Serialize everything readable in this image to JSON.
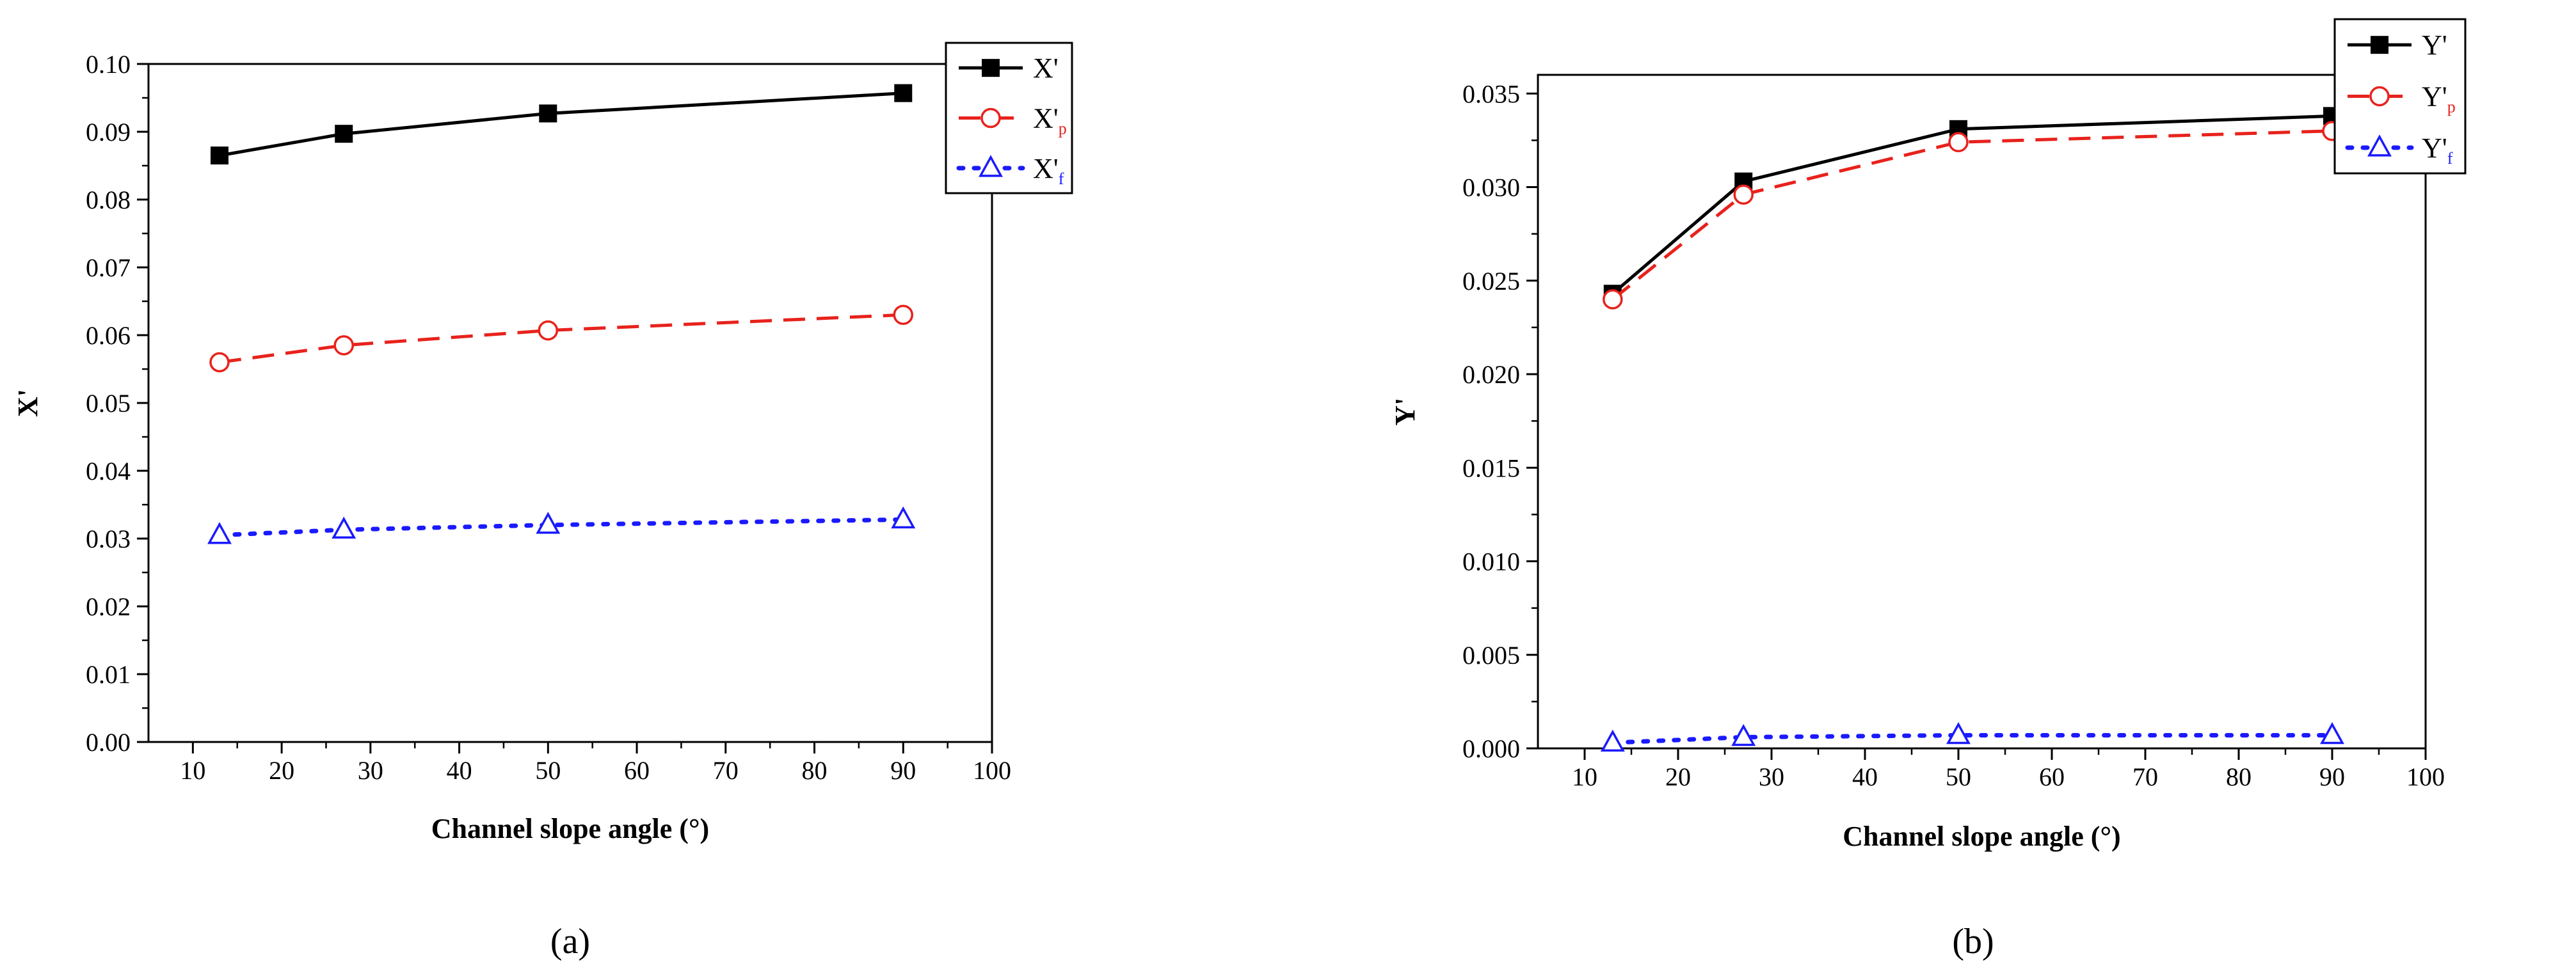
{
  "chart_data": [
    {
      "type": "line",
      "panel_label": "(a)",
      "xlabel": "Channel slope angle (°)",
      "ylabel": "X'",
      "xlim": [
        5,
        100
      ],
      "ylim": [
        0,
        0.1
      ],
      "xticks": [
        10,
        20,
        30,
        40,
        50,
        60,
        70,
        80,
        90,
        100
      ],
      "yticks": [
        "0.00",
        "0.01",
        "0.02",
        "0.03",
        "0.04",
        "0.05",
        "0.06",
        "0.07",
        "0.08",
        "0.09",
        "0.10"
      ],
      "grid": false,
      "legend_position": "top-right",
      "x": [
        13,
        27,
        50,
        90
      ],
      "series": [
        {
          "name": "X'",
          "subscript": "",
          "values": [
            0.0865,
            0.0897,
            0.0927,
            0.0957
          ],
          "color": "#000000",
          "marker": "square",
          "linestyle": "solid"
        },
        {
          "name": "X'",
          "subscript": "p",
          "values": [
            0.056,
            0.0585,
            0.0607,
            0.063
          ],
          "color": "#e8221c",
          "marker": "circle",
          "linestyle": "dashed"
        },
        {
          "name": "X'",
          "subscript": "f",
          "values": [
            0.0305,
            0.0313,
            0.032,
            0.0328
          ],
          "color": "#1a1aff",
          "marker": "triangle",
          "linestyle": "dotted"
        }
      ]
    },
    {
      "type": "line",
      "panel_label": "(b)",
      "xlabel": "Channel slope angle (°)",
      "ylabel": "Y'",
      "xlim": [
        5,
        100
      ],
      "ylim": [
        0,
        0.036
      ],
      "xticks": [
        10,
        20,
        30,
        40,
        50,
        60,
        70,
        80,
        90,
        100
      ],
      "yticks": [
        "0.000",
        "0.005",
        "0.010",
        "0.015",
        "0.020",
        "0.025",
        "0.030",
        "0.035"
      ],
      "grid": false,
      "legend_position": "top-right",
      "x": [
        13,
        27,
        50,
        90
      ],
      "series": [
        {
          "name": "Y'",
          "subscript": "",
          "values": [
            0.0243,
            0.0303,
            0.0331,
            0.0338
          ],
          "color": "#000000",
          "marker": "square",
          "linestyle": "solid"
        },
        {
          "name": "Y'",
          "subscript": "p",
          "values": [
            0.024,
            0.0296,
            0.0324,
            0.033
          ],
          "color": "#e8221c",
          "marker": "circle",
          "linestyle": "dashed"
        },
        {
          "name": "Y'",
          "subscript": "f",
          "values": [
            0.0003,
            0.0006,
            0.0007,
            0.0007
          ],
          "color": "#1a1aff",
          "marker": "triangle",
          "linestyle": "dotted"
        }
      ]
    }
  ]
}
